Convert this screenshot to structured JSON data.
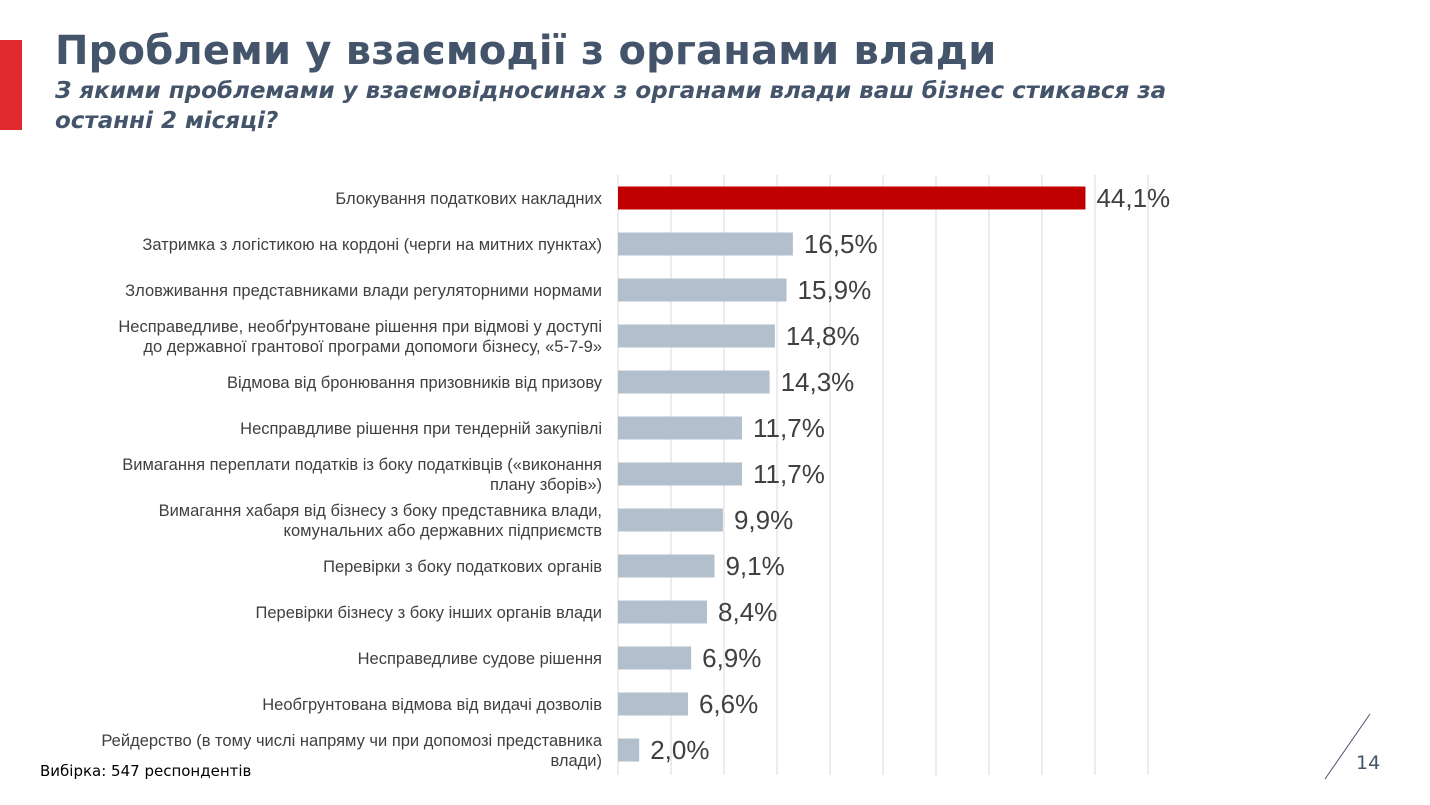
{
  "slide": {
    "title": "Проблеми у взаємодії з органами влади",
    "subtitle": "З якими проблемами у взаємовідносинах з органами влади ваш бізнес стикався за останні 2 місяці?",
    "sample_note": "Вибірка: 547 респондентів",
    "page_number": "14"
  },
  "colors": {
    "accent": "#e12a2f",
    "highlight_bar": "#c00000",
    "default_bar": "#b4bfcd",
    "title": "#44546a",
    "text": "#404040",
    "grid": "#d9d9d9"
  },
  "chart_data": {
    "type": "bar",
    "orientation": "horizontal",
    "categories": [
      [
        "Блокування податкових накладних"
      ],
      [
        "Затримка з логістикою на кордоні (черги на митних пунктах)"
      ],
      [
        "Зловживання представниками влади регуляторними нормами"
      ],
      [
        "Несправедливе, необґрунтоване рішення при відмові у доступі",
        "до державної грантової програми допомоги бізнесу, «5-7-9»"
      ],
      [
        "Відмова від бронювання призовників від призову"
      ],
      [
        "Несправдливе рішення при тендерній закупівлі"
      ],
      [
        "Вимагання переплати податків із боку податківців («виконання",
        "плану зборів»)"
      ],
      [
        "Вимагання хабаря від бізнесу з боку представника влади,",
        "комунальних або державних підприємств"
      ],
      [
        "Перевірки з боку податкових органів"
      ],
      [
        "Перевірки бізнесу з боку інших органів влади"
      ],
      [
        "Несправедливе судове рішення"
      ],
      [
        "Необгрунтована відмова від видачі дозволів"
      ],
      [
        "Рейдерство (в тому числі напряму чи при допомозі представника",
        "влади)"
      ]
    ],
    "values": [
      44.1,
      16.5,
      15.9,
      14.8,
      14.3,
      11.7,
      11.7,
      9.9,
      9.1,
      8.4,
      6.9,
      6.6,
      2.0
    ],
    "value_labels": [
      "44,1%",
      "16,5%",
      "15,9%",
      "14,8%",
      "14,3%",
      "11,7%",
      "11,7%",
      "9,9%",
      "9,1%",
      "8,4%",
      "6,9%",
      "6,6%",
      "2,0%"
    ],
    "highlighted_index": 0,
    "xlim": [
      0,
      50
    ],
    "grid_step": 5,
    "grid": true,
    "legend": false
  }
}
